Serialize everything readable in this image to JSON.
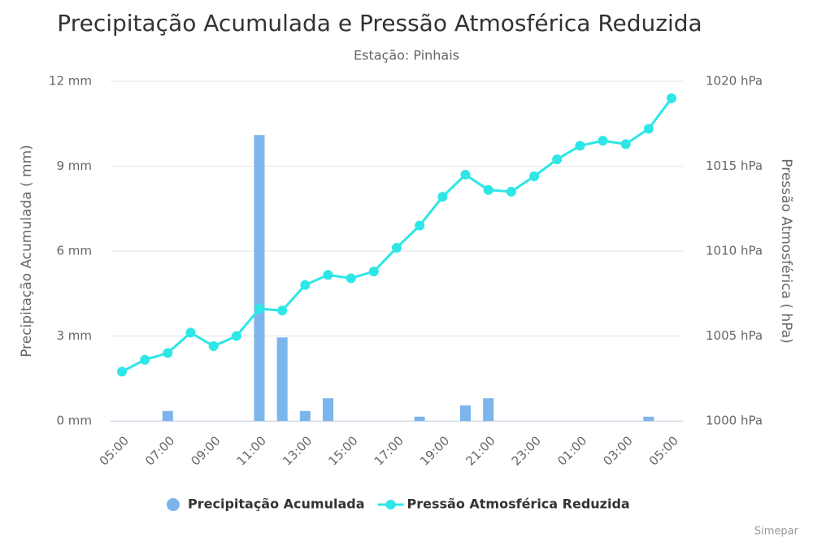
{
  "chart_data": {
    "type": "combo",
    "title": "Precipitação Acumulada e Pressão Atmosférica Reduzida",
    "subtitle": "Estação: Pinhais",
    "y_label": "Precipitação Acumulada ( mm)",
    "y2_label": "Pressão Atmosférica ( hPa)",
    "credits": "Simepar",
    "categories": [
      "05:00",
      null,
      "07:00",
      null,
      "09:00",
      null,
      "11:00",
      null,
      "13:00",
      null,
      "15:00",
      null,
      "17:00",
      null,
      "19:00",
      null,
      "21:00",
      null,
      "23:00",
      null,
      "01:00",
      null,
      "03:00",
      null,
      "05:00"
    ],
    "ylim": [
      0,
      12
    ],
    "yticks": [
      {
        "value": 0,
        "label": "0 mm"
      },
      {
        "value": 3,
        "label": "3 mm"
      },
      {
        "value": 6,
        "label": "6 mm"
      },
      {
        "value": 9,
        "label": "9 mm"
      },
      {
        "value": 12,
        "label": "12 mm"
      }
    ],
    "y2lim": [
      1000,
      1020
    ],
    "y2ticks": [
      {
        "value": 1000,
        "label": "1000 hPa"
      },
      {
        "value": 1005,
        "label": "1005 hPa"
      },
      {
        "value": 1010,
        "label": "1010 hPa"
      },
      {
        "value": 1015,
        "label": "1015 hPa"
      },
      {
        "value": 1020,
        "label": "1020 hPa"
      }
    ],
    "grid": true,
    "series": [
      {
        "name": "Precipitação Acumulada",
        "type": "bar",
        "color": "#7cb5ec",
        "values": [
          0,
          0,
          0.35,
          0,
          0,
          0,
          10.1,
          2.95,
          0.35,
          0.8,
          0,
          0,
          0,
          0.15,
          0,
          0.55,
          0.8,
          0,
          0,
          0,
          0,
          0,
          0,
          0.15,
          0
        ]
      },
      {
        "name": "Pressão Atmosférica Reduzida",
        "type": "line",
        "axis": "y2",
        "color": "#2ee6e6",
        "values": [
          1002.9,
          1003.6,
          1004.0,
          1005.2,
          1004.4,
          1005.0,
          1006.6,
          1006.5,
          1008.0,
          1008.6,
          1008.4,
          1008.8,
          1010.2,
          1011.5,
          1013.2,
          1014.5,
          1013.6,
          1013.5,
          1014.4,
          1015.4,
          1016.2,
          1016.5,
          1016.3,
          1017.2,
          1019.0
        ]
      }
    ]
  }
}
